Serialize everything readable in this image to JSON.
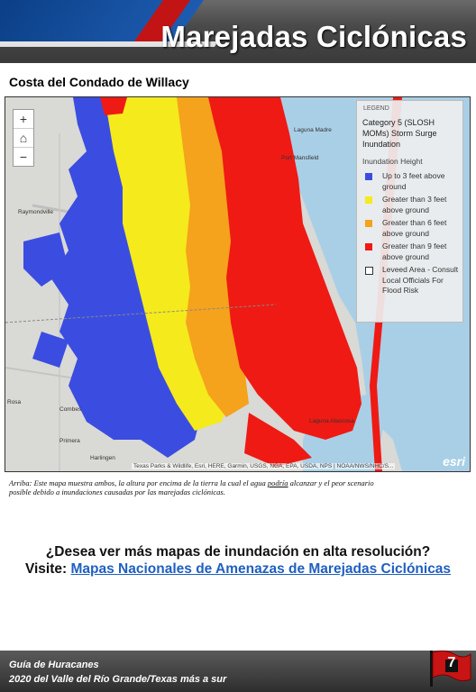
{
  "header": {
    "title": "Marejadas Ciclónicas"
  },
  "subtitle": "Costa del Condado de Willacy",
  "map": {
    "zoom_in": "+",
    "home_icon": "home-icon",
    "zoom_out": "−",
    "legend": {
      "heading": "LEGEND",
      "title": "Category 5 (SLOSH MOMs) Storm Surge Inundation",
      "subtitle": "Inundation Height",
      "items": [
        {
          "label": "Up to 3 feet above ground",
          "color": "#3b4de0"
        },
        {
          "label": "Greater than 3 feet above ground",
          "color": "#f5ea1c"
        },
        {
          "label": "Greater than 6 feet above ground",
          "color": "#f5a21c"
        },
        {
          "label": "Greater than 9 feet above ground",
          "color": "#ef1a14"
        },
        {
          "label": "Leveed Area - Consult Local Officials For Flood Risk",
          "color": "#ffffff"
        }
      ]
    },
    "places": {
      "raymondville": "Raymondville",
      "rosa": "Rosa",
      "combes": "Combes",
      "primera": "Primera",
      "harlingen": "Harlingen",
      "laguna_madre": "Laguna Madre",
      "laguna_atascosa": "Laguna Atascosa",
      "port_mansfield": "Port Mansfield"
    },
    "attribution": "Texas Parks & Wildlife, Esri, HERE, Garmin, USGS, NGA, EPA, USDA, NPS | NOAA/NWS/NHC/S...",
    "esri": "esri"
  },
  "caption": {
    "part1": "Arriba: Este mapa muestra ambos, la altura por encima de la tierra la cual el agua ",
    "underlined": "podría",
    "part2": " alcanzar y el peor scenario posible debido a inundaciones causadas por las marejadas ciclónicas."
  },
  "cta": {
    "question": "¿Desea ver más mapas de inundación en alta resolución?",
    "visit": "Visite:",
    "link": "Mapas Nacionales de Amenazas de Marejadas Ciclónicas"
  },
  "footer": {
    "line1": "Guía de Huracanes",
    "line2": "2020 del Valle del Río Grande/Texas más a sur",
    "page": "7"
  }
}
